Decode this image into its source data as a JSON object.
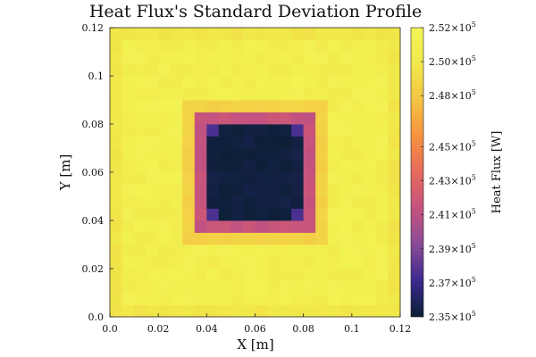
{
  "chart_data": {
    "type": "heatmap",
    "title": "Heat Flux's Standard Deviation Profile",
    "xlabel": "X [m]",
    "ylabel": "Y [m]",
    "colorbar_label": "Heat Flux [W]",
    "xlim": [
      0.0,
      0.12
    ],
    "ylim": [
      0.0,
      0.12
    ],
    "x_ticks": [
      0.0,
      0.02,
      0.04,
      0.06,
      0.08,
      0.1,
      0.12
    ],
    "x_tick_labels": [
      "0.0",
      "0.02",
      "0.04",
      "0.06",
      "0.08",
      "0.1",
      "0.12"
    ],
    "y_ticks": [
      0.0,
      0.02,
      0.04,
      0.06,
      0.08,
      0.1,
      0.12
    ],
    "y_tick_labels": [
      "0.0",
      "0.02",
      "0.04",
      "0.06",
      "0.08",
      "0.1",
      "0.12"
    ],
    "grid": {
      "nx": 24,
      "ny": 24,
      "cell_size": 0.005
    },
    "colorbar": {
      "min": 235000,
      "max": 252000,
      "ticks": [
        235000,
        237000,
        239000,
        241000,
        243000,
        245000,
        248000,
        250000,
        252000
      ],
      "tick_mantissas": [
        "2.35",
        "2.37",
        "2.39",
        "2.41",
        "2.43",
        "2.45",
        "2.48",
        "2.50",
        "2.52"
      ],
      "tick_multiplier": "×10",
      "tick_exponent": "5",
      "colors": [
        "#0a1f33",
        "#3c2a8f",
        "#8a4b96",
        "#c4537f",
        "#e66a5c",
        "#f7923f",
        "#f5c443",
        "#f1e84a",
        "#f3f556"
      ]
    },
    "regions": {
      "edge_value": 249800,
      "background_value": 251000,
      "halo_value": 248500,
      "ring_value": 241500,
      "corner_value": 237500,
      "core_value": 235300
    }
  }
}
